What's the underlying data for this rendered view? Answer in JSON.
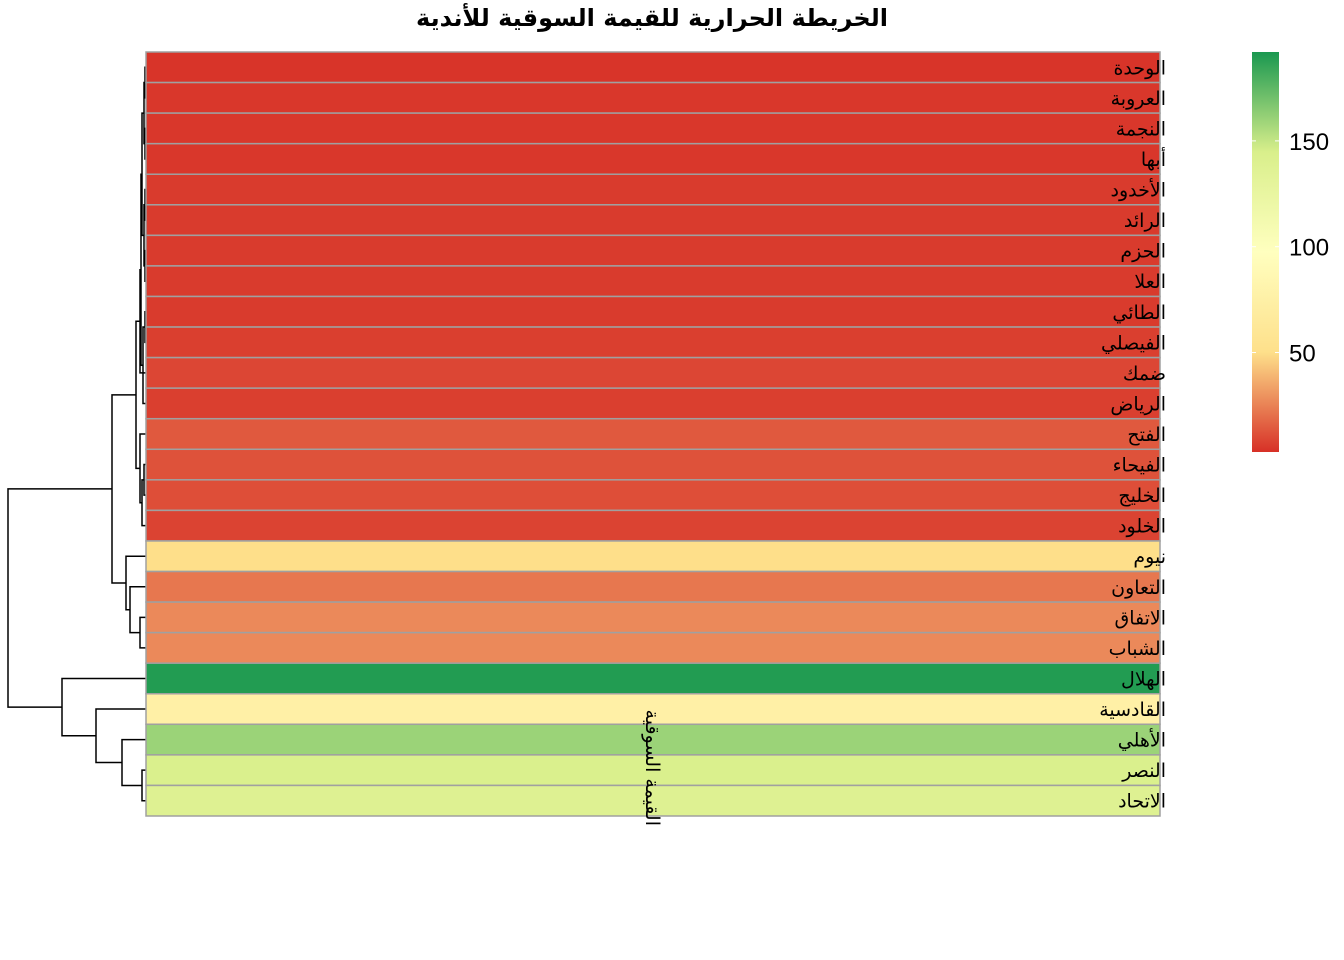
{
  "chart_data": {
    "type": "heatmap",
    "title": "الخريطة الحرارية للقيمة السوقية للأندية",
    "columns": [
      "القيمة السوقية"
    ],
    "rows": [
      "الوحدة",
      "العروبة",
      "النجمة",
      "أبها",
      "الأخدود",
      "الرائد",
      "الحزم",
      "العلا",
      "الطائي",
      "الفيصلي",
      "ضمك",
      "الرياض",
      "الفتح",
      "الفيحاء",
      "الخليج",
      "الخلود",
      "نيوم",
      "التعاون",
      "الاتفاق",
      "الشباب",
      "الهلال",
      "القادسية",
      "الأهلي",
      "النصر",
      "الاتحاد"
    ],
    "values": [
      4,
      5,
      5,
      5,
      6,
      6,
      6,
      6,
      6,
      7,
      9,
      7,
      14,
      12,
      11,
      8,
      50,
      22,
      27,
      27,
      190,
      75,
      160,
      143,
      138
    ],
    "colorbar": {
      "range": [
        3,
        192
      ],
      "ticks": [
        50,
        100,
        150
      ],
      "colors": [
        "#D73027",
        "#FEE08B",
        "#FFFFBF",
        "#D9EF8B",
        "#1A9850"
      ]
    },
    "row_dendrogram": true,
    "cell_border_color": "#A0A0A0"
  }
}
